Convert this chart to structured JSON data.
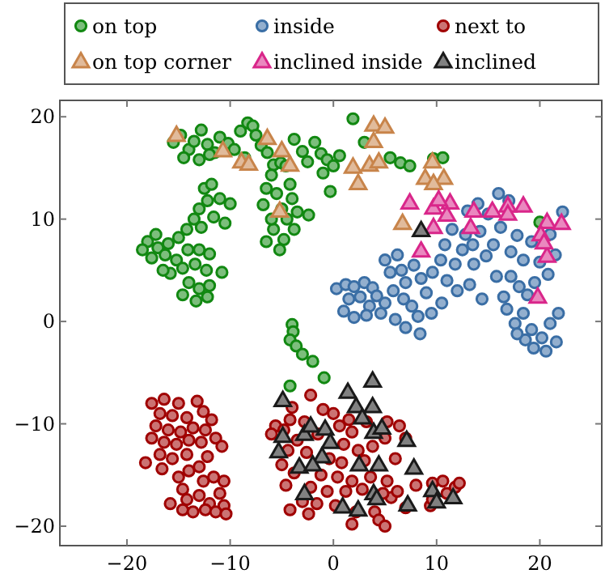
{
  "chart_data": {
    "type": "scatter",
    "xlim": [
      -26.5,
      26
    ],
    "ylim": [
      -21.9,
      21.6
    ],
    "xticks": [
      -20,
      -10,
      0,
      10,
      20
    ],
    "yticks": [
      -20,
      -10,
      0,
      10,
      20
    ],
    "legend": "top",
    "grid": false,
    "series": [
      {
        "name": "on top",
        "color": "#118811",
        "marker": "circle",
        "x": [
          -15.5,
          -14.8,
          -14,
          -13.5,
          -12.8,
          -12.2,
          -11.5,
          -11,
          -10.2,
          -9.6,
          -9,
          -8.3,
          -7.8,
          -7.5,
          -8.6,
          -7,
          -6.4,
          -5.8,
          -5.1,
          -4.6,
          -3.8,
          -3,
          -2.5,
          -1.8,
          -1.2,
          -0.6,
          0,
          0.6,
          -14.5,
          -13,
          -12,
          -6,
          -6.5,
          -5.5,
          -4.2,
          -5,
          -6.8,
          -4.5,
          -5.8,
          -3.8,
          -4.8,
          -6.5,
          -5.2,
          -4,
          -3.5,
          -6,
          -12.5,
          -11.8,
          -12.2,
          -11,
          -10,
          -13,
          -13.5,
          -12.8,
          -11.6,
          -10.5,
          -14.2,
          -15,
          -16,
          -17,
          -18,
          -18.5,
          -17.6,
          -16.3,
          -15.2,
          -14.1,
          -13,
          -12,
          -14.6,
          -13.4,
          -12.3,
          -10.8,
          -15.8,
          -14,
          -13,
          -12,
          -14.6,
          -13.3,
          -12.2,
          -16.5,
          -17.2,
          1.9,
          5.5,
          6.5,
          7.4,
          9.7,
          10.6,
          -0.3,
          -2.4,
          20,
          3,
          -1,
          -4,
          -3.9,
          -4.2,
          -3.6,
          -3,
          -2,
          -0.9,
          -4.2
        ],
        "values": [
          17.5,
          18.2,
          16.8,
          17.6,
          18.7,
          17.3,
          16.5,
          18,
          17.4,
          16.8,
          18.6,
          19.4,
          19.1,
          18.2,
          16,
          17.2,
          16.5,
          15.3,
          15.5,
          15.2,
          17.8,
          16.6,
          15.6,
          17.5,
          16.4,
          15.8,
          15.2,
          16.2,
          16,
          15.8,
          16.3,
          14.3,
          13,
          12.5,
          13.4,
          11,
          11.4,
          10,
          9,
          9,
          8,
          7.8,
          7,
          12,
          10.7,
          10,
          13,
          13.4,
          11.8,
          12,
          11.5,
          11,
          10,
          9.2,
          10.2,
          9.6,
          9,
          8.2,
          7.6,
          7.2,
          7.8,
          7,
          6.2,
          6.5,
          6,
          7,
          7,
          6.6,
          5.2,
          5.6,
          5,
          4.8,
          4.7,
          3.8,
          3.2,
          3.5,
          2.6,
          2,
          2.4,
          5,
          8.5,
          19.8,
          16,
          15.5,
          15.2,
          15.9,
          16,
          12.7,
          10.4,
          9.7,
          17.5,
          14.5,
          -0.3,
          -1,
          -1.8,
          -2.4,
          -3.2,
          -3.9,
          -5.5,
          -6.3
        ]
      },
      {
        "name": "inside",
        "color": "#3a6ea5",
        "marker": "circle",
        "x": [
          0.3,
          1.2,
          2,
          3,
          3.8,
          1.5,
          2.6,
          3.5,
          4.2,
          1,
          2,
          3.2,
          5,
          5.5,
          6.2,
          6.6,
          7,
          7.8,
          8.5,
          5.8,
          6.8,
          7.6,
          8.2,
          9,
          9.6,
          10.4,
          11,
          11.8,
          12.5,
          12,
          10.5,
          9.5,
          6,
          7,
          8.4,
          5,
          4.6,
          10.8,
          11.5,
          12.8,
          13.5,
          14.2,
          14.8,
          13.6,
          15.5,
          16.2,
          15,
          16,
          17,
          15.8,
          17.2,
          17.8,
          18.4,
          19.2,
          17.2,
          16.5,
          18,
          19.5,
          20.8,
          20,
          18.8,
          21.5,
          21,
          16.8,
          17.6,
          18.4,
          19.2,
          20.2,
          21,
          21.8,
          21.6,
          20.6,
          19.4,
          18.6,
          17.8,
          13.2,
          14.4,
          13,
          14,
          22.2
        ],
        "values": [
          3.2,
          3.6,
          3.4,
          3.8,
          3.3,
          2.2,
          2.4,
          1.5,
          2.5,
          1,
          0.4,
          0.6,
          6,
          4.8,
          6.5,
          5,
          3.8,
          5.5,
          4.2,
          3,
          2.2,
          1.5,
          0.5,
          2.8,
          4.8,
          6,
          4,
          5.6,
          7,
          3,
          1.8,
          0.8,
          0.2,
          -0.6,
          -1.2,
          1.8,
          0.8,
          7.5,
          9,
          8.5,
          7.5,
          8.8,
          6.4,
          5.6,
          7.5,
          9.2,
          10.5,
          12.5,
          11.8,
          4.4,
          6.8,
          8.4,
          6,
          7.8,
          4.4,
          2.4,
          3.4,
          3.8,
          4.6,
          5.8,
          2.6,
          6.5,
          8.5,
          1.2,
          -0.2,
          0.8,
          -0.8,
          -1.6,
          -0.2,
          0.8,
          -2,
          -2.9,
          -2.6,
          -1.8,
          -1.2,
          3.6,
          2.2,
          10.8,
          11.5,
          10.7
        ]
      },
      {
        "name": "next to",
        "color": "#a00000",
        "marker": "circle",
        "x": [
          -17.6,
          -16.4,
          -15,
          -13.2,
          -16.8,
          -15.6,
          -14.2,
          -12.6,
          -11.8,
          -17.2,
          -16,
          -14.8,
          -13.6,
          -12.4,
          -17.6,
          -16.4,
          -15.2,
          -14,
          -12.8,
          -11.4,
          -10.8,
          -16.8,
          -15.6,
          -14.2,
          -12.2,
          -18.2,
          -16.6,
          -14,
          -13,
          -15,
          -14.6,
          -12.6,
          -11.6,
          -10.6,
          -14.2,
          -13,
          -12,
          -11,
          -10.6,
          -14.6,
          -13.6,
          -12.4,
          -11.4,
          -10.4,
          -15.8,
          -2.2,
          -4,
          -1,
          0,
          1.5,
          -5.6,
          -4.2,
          -2.8,
          -6,
          -4.8,
          -3.5,
          -1.5,
          0.6,
          1.8,
          3.2,
          5.2,
          6.4,
          7,
          1,
          2.4,
          3.8,
          5,
          -4.4,
          -2.6,
          -0.4,
          0.8,
          3,
          -5,
          -3.8,
          -1.2,
          0.4,
          1.8,
          3.6,
          5.2,
          -4.6,
          -2.2,
          -0.6,
          1.2,
          2.8,
          -3,
          -1.6,
          0.2,
          -4.2,
          -2.4,
          4,
          1.8,
          4.4,
          5,
          5.6,
          6.2,
          7,
          8,
          9.4,
          9.6,
          10.6,
          11,
          11.8,
          12.2,
          9.6,
          2.2,
          4.8,
          6
        ],
        "values": [
          -8,
          -7.6,
          -8,
          -7.8,
          -9,
          -9.2,
          -9.4,
          -8.8,
          -9.6,
          -10.2,
          -10.6,
          -10.8,
          -10.4,
          -10.6,
          -11.4,
          -11.8,
          -12,
          -11.6,
          -11.8,
          -11.4,
          -12.2,
          -13,
          -13.4,
          -13,
          -13.2,
          -13.8,
          -14.4,
          -14.6,
          -14.2,
          -15.2,
          -16.4,
          -15.6,
          -15.2,
          -15.6,
          -17.4,
          -17,
          -17.8,
          -16.8,
          -18,
          -18.4,
          -18.6,
          -18.4,
          -18.6,
          -18.8,
          -17.8,
          -7.2,
          -8.4,
          -8.6,
          -9,
          -9.6,
          -10.2,
          -9.6,
          -9.8,
          -11,
          -10.6,
          -11.6,
          -11,
          -10.2,
          -10.8,
          -9.8,
          -9.8,
          -10.2,
          -11.4,
          -12,
          -12.6,
          -12.2,
          -11.4,
          -12.6,
          -12.8,
          -13.4,
          -13.8,
          -13.6,
          -14,
          -14.8,
          -15,
          -15.2,
          -15.6,
          -15.2,
          -15.6,
          -16,
          -16.2,
          -16.6,
          -16.6,
          -16.4,
          -17.6,
          -17.8,
          -18,
          -18.4,
          -18.8,
          -18.6,
          -19.8,
          -19.4,
          -20,
          -17.2,
          -16.6,
          -18.2,
          -16,
          -18,
          -15.8,
          -15.6,
          -16.8,
          -16.2,
          -15.8,
          -17.4,
          -18.6,
          -16.8,
          -13.4
        ]
      },
      {
        "name": "on top corner",
        "color": "#c8844a",
        "marker": "triangle",
        "x": [
          -15.2,
          -10.7,
          -8.9,
          -8.2,
          -6.4,
          -5,
          -4.2,
          -5.2,
          3.9,
          5,
          3.9,
          1.9,
          3.5,
          4.4,
          2.4,
          9.6,
          8.9,
          10.7,
          9.7,
          6.7
        ],
        "values": [
          18.2,
          16.7,
          15.6,
          15.4,
          17.9,
          16.7,
          15.3,
          10.8,
          19.2,
          19,
          17.6,
          15.1,
          15.3,
          15.6,
          13.5,
          15.6,
          14,
          14,
          13.5,
          9.6
        ]
      },
      {
        "name": "inclined inside",
        "color": "#d9268a",
        "marker": "triangle",
        "x": [
          7.4,
          9.7,
          11.3,
          11,
          9.7,
          8.5,
          13.6,
          13.3,
          15.4,
          16.9,
          18.4,
          20.7,
          22.1,
          20.1,
          20.7,
          20.4,
          19.8,
          10.2,
          16.9
        ],
        "values": [
          11.6,
          11.1,
          11.6,
          10.4,
          9.2,
          6.9,
          10.8,
          9.2,
          10.8,
          11.3,
          11.3,
          9.7,
          9.6,
          8.5,
          6.4,
          7.7,
          2.4,
          11.9,
          10.5
        ]
      },
      {
        "name": "inclined",
        "color": "#1a1a1a",
        "marker": "triangle",
        "x": [
          8.5,
          -4.9,
          -4.9,
          -5.3,
          -2.8,
          -2.2,
          -3.3,
          -2.8,
          3.8,
          1.4,
          2.2,
          3.8,
          2.8,
          3.9,
          4.7,
          7.1,
          -0.8,
          -0.3,
          -1.1,
          2.5,
          4.4,
          -2,
          7.8,
          9.6,
          11.6,
          3.9,
          4.2,
          7.2,
          10,
          0.9,
          2.4
        ],
        "values": [
          8.9,
          -7.7,
          -11.2,
          -12.7,
          -11,
          -10.2,
          -14.2,
          -16.8,
          -5.8,
          -6.9,
          -8.3,
          -8.3,
          -9.4,
          -10.8,
          -10.4,
          -11.6,
          -10.5,
          -11.8,
          -13.2,
          -14,
          -14,
          -14,
          -14.3,
          -16.5,
          -17.2,
          -16.8,
          -17.3,
          -17.9,
          -17.6,
          -18.1,
          -18.4
        ]
      }
    ]
  }
}
